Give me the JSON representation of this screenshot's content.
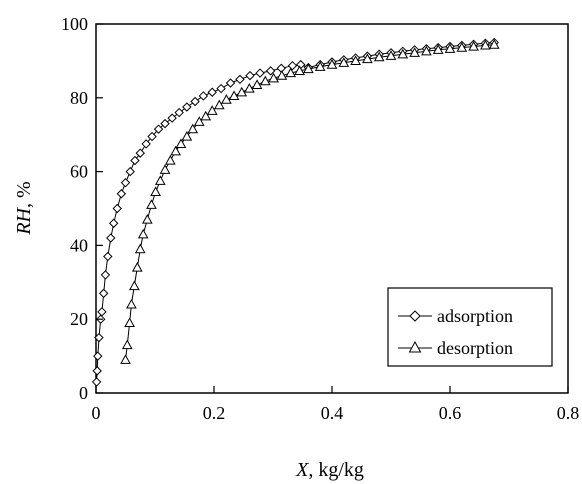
{
  "chart_data": {
    "type": "line",
    "xlabel": {
      "var": "X",
      "unit": ", kg/kg"
    },
    "ylabel": {
      "var": "RH",
      "unit": ", %"
    },
    "xlim": [
      0,
      0.8
    ],
    "ylim": [
      0,
      100
    ],
    "xticks": [
      "0",
      "0.2",
      "0.4",
      "0.6",
      "0.8"
    ],
    "yticks": [
      "0",
      "20",
      "40",
      "60",
      "80",
      "100"
    ],
    "xtick_values": [
      0,
      0.2,
      0.4,
      0.6,
      0.8
    ],
    "ytick_values": [
      0,
      20,
      40,
      60,
      80,
      100
    ],
    "grid": false,
    "legend_position": "bottom-right",
    "series": [
      {
        "name": "adsorption",
        "marker": "diamond",
        "color": "#000000",
        "x": [
          0.001,
          0.002,
          0.003,
          0.005,
          0.008,
          0.01,
          0.013,
          0.016,
          0.02,
          0.025,
          0.03,
          0.036,
          0.043,
          0.05,
          0.058,
          0.066,
          0.075,
          0.085,
          0.095,
          0.106,
          0.117,
          0.129,
          0.141,
          0.154,
          0.168,
          0.182,
          0.197,
          0.212,
          0.228,
          0.244,
          0.261,
          0.278,
          0.296,
          0.314,
          0.333,
          0.347,
          0.36,
          0.38,
          0.4,
          0.42,
          0.44,
          0.46,
          0.48,
          0.5,
          0.52,
          0.54,
          0.56,
          0.58,
          0.6,
          0.62,
          0.64,
          0.66,
          0.675
        ],
        "y": [
          3,
          6,
          10,
          15,
          20,
          22,
          27,
          32,
          37,
          42,
          46,
          50,
          54,
          57,
          60,
          63,
          65,
          67.5,
          69.5,
          71.5,
          73,
          74.5,
          76,
          77.5,
          79,
          80.5,
          81.5,
          82.5,
          84,
          85,
          86,
          86.7,
          87.3,
          88,
          88.7,
          89,
          88.2,
          89,
          89.7,
          90.3,
          90.8,
          91.3,
          91.8,
          92.2,
          92.6,
          93,
          93.3,
          93.6,
          93.9,
          94.2,
          94.5,
          94.8,
          95
        ]
      },
      {
        "name": "desorption",
        "marker": "triangle",
        "color": "#000000",
        "x": [
          0.05,
          0.053,
          0.057,
          0.06,
          0.065,
          0.07,
          0.075,
          0.08,
          0.087,
          0.094,
          0.101,
          0.109,
          0.117,
          0.126,
          0.135,
          0.144,
          0.154,
          0.164,
          0.175,
          0.186,
          0.197,
          0.209,
          0.221,
          0.234,
          0.247,
          0.26,
          0.273,
          0.287,
          0.301,
          0.315,
          0.33,
          0.345,
          0.36,
          0.38,
          0.4,
          0.42,
          0.44,
          0.46,
          0.48,
          0.5,
          0.52,
          0.54,
          0.56,
          0.58,
          0.6,
          0.62,
          0.64,
          0.66,
          0.675
        ],
        "y": [
          9,
          13,
          19,
          24,
          29,
          34,
          39,
          43,
          47,
          51,
          54.5,
          57.5,
          60.5,
          63,
          65.5,
          67.5,
          69.5,
          71.5,
          73.5,
          75,
          76.5,
          78,
          79.5,
          80.5,
          81.5,
          82.5,
          83.5,
          84.5,
          85.3,
          86,
          86.7,
          87.3,
          87.8,
          88.4,
          89,
          89.5,
          90,
          90.5,
          91,
          91.4,
          91.8,
          92.2,
          92.6,
          93,
          93.3,
          93.6,
          93.9,
          94.2,
          94.4
        ]
      }
    ]
  }
}
